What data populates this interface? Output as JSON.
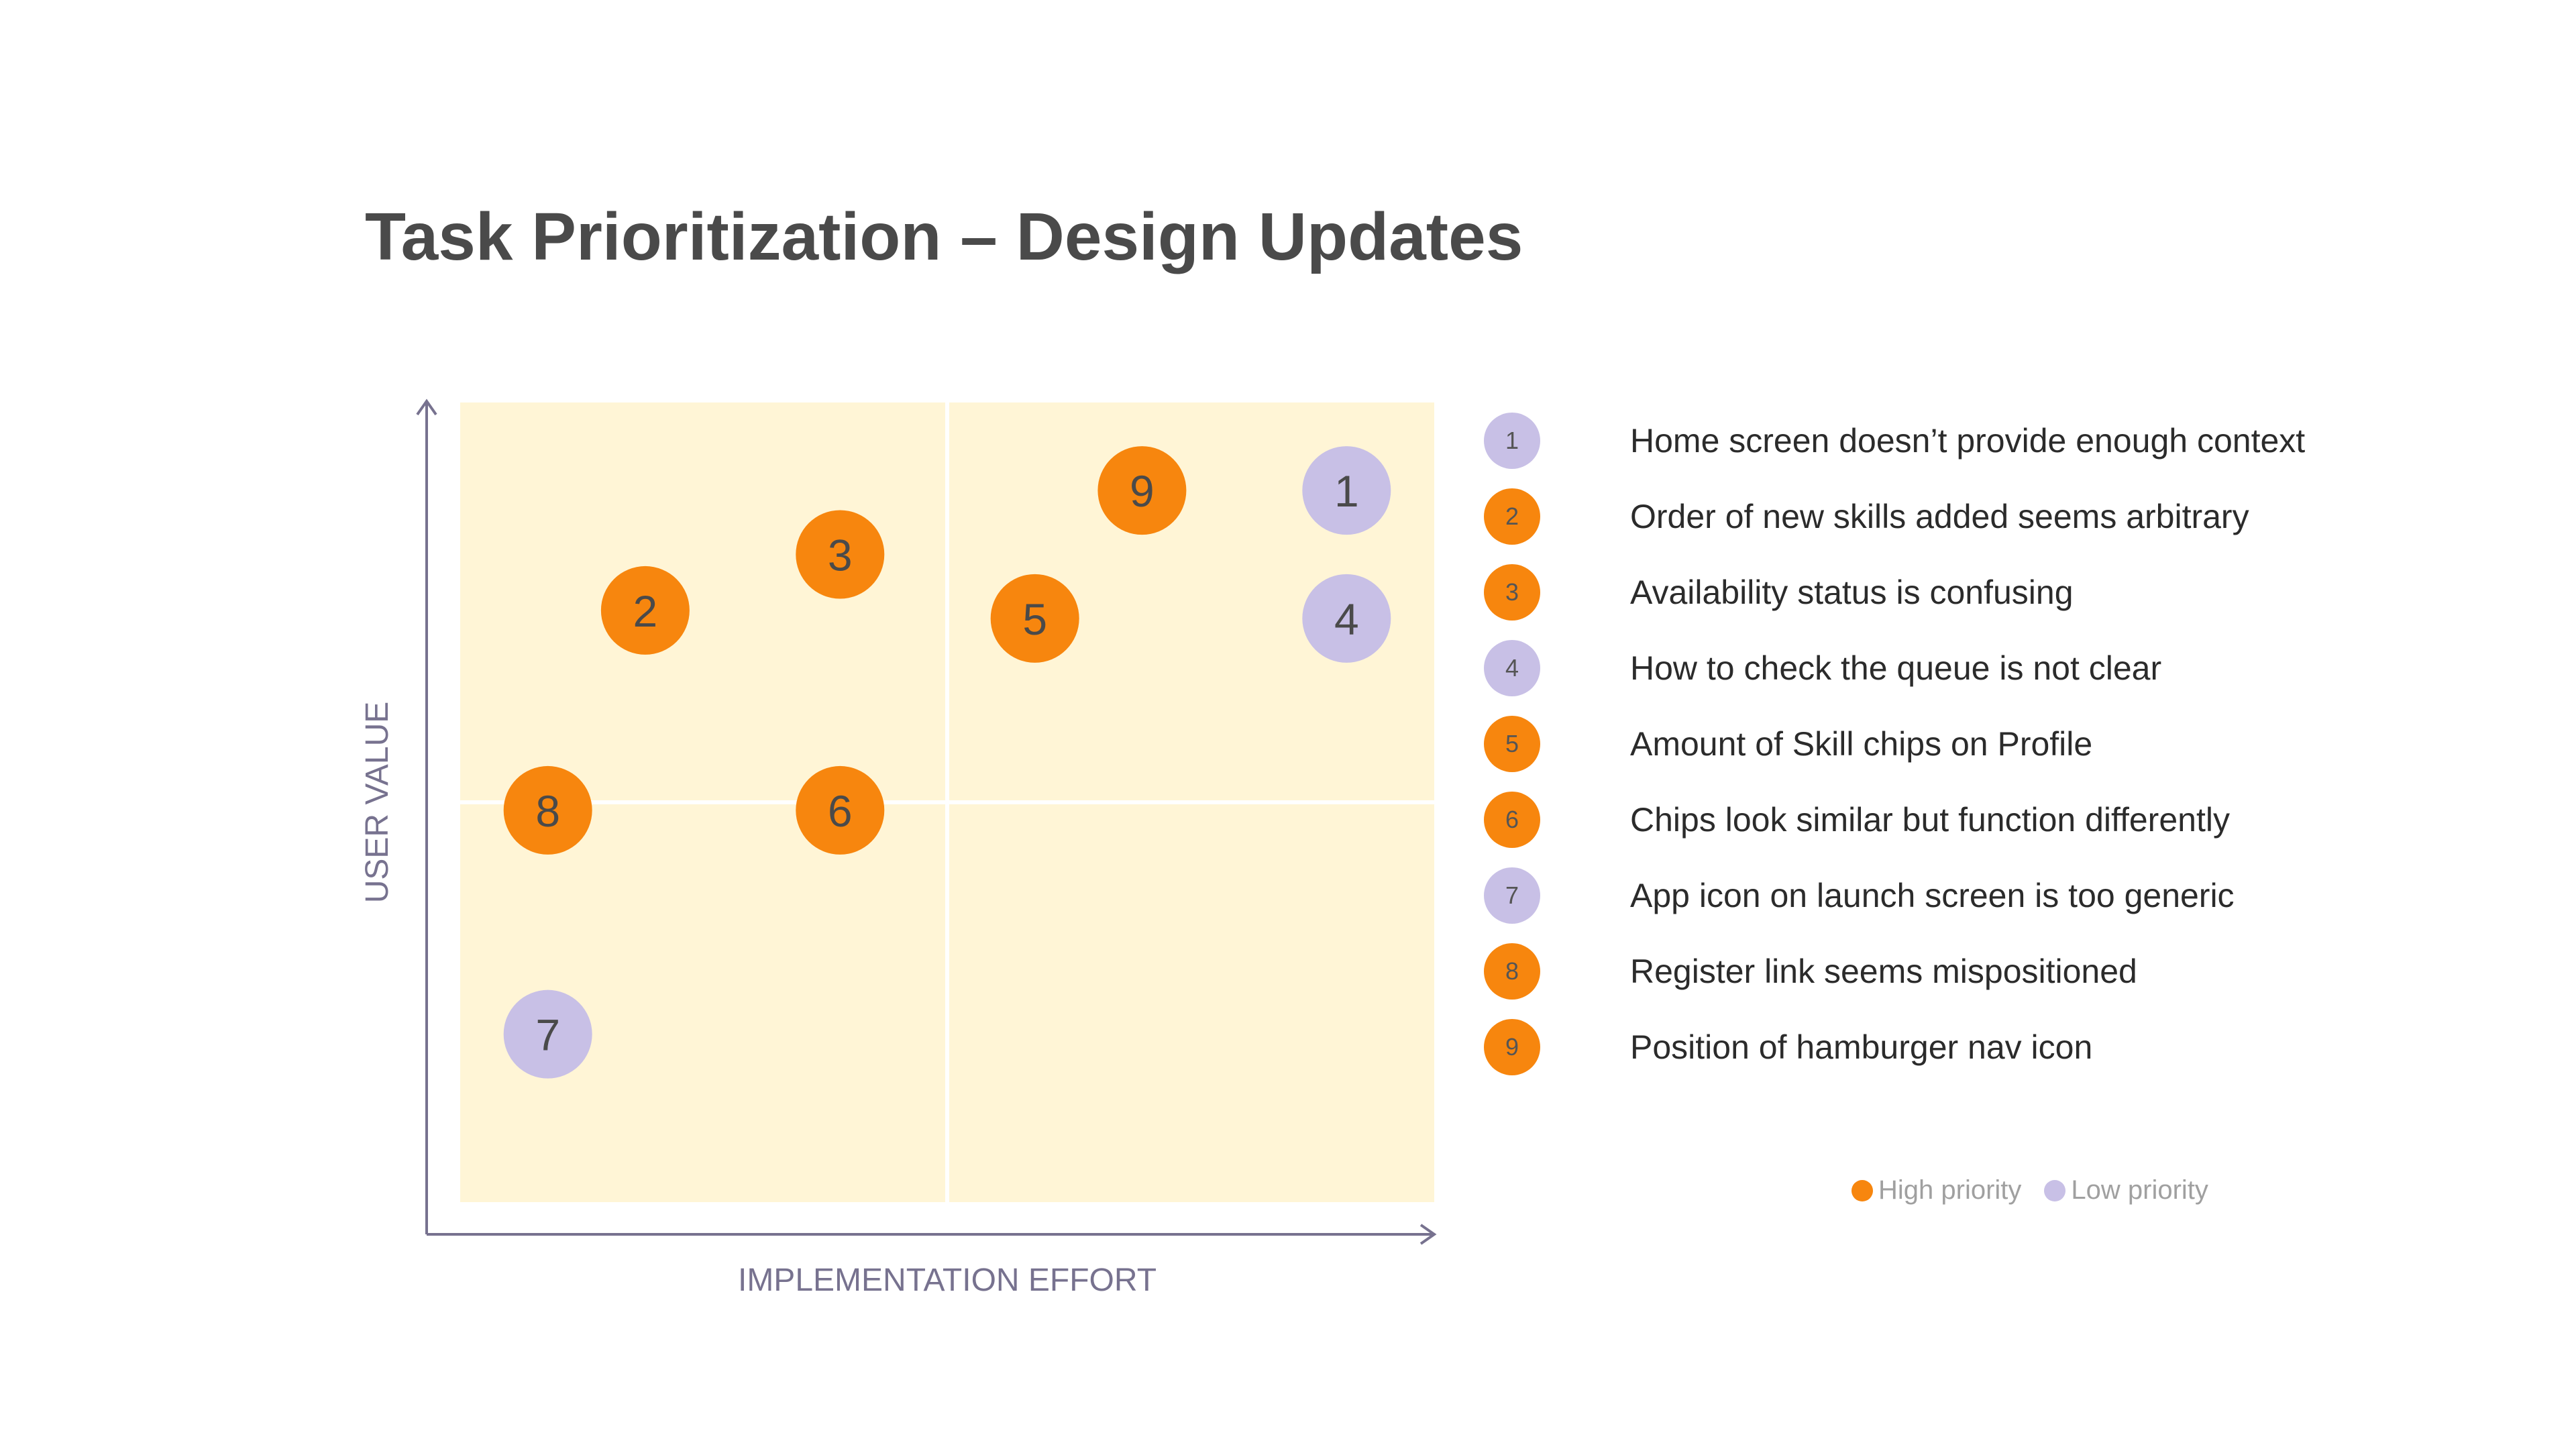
{
  "title": "Task Prioritization – Design Updates",
  "colors": {
    "high": "#f7860e",
    "low": "#c8c0e6",
    "quadrant_bg": "#fff5d6",
    "axis": "#77728f",
    "axis_label": "#77728f"
  },
  "chart_data": {
    "type": "scatter",
    "xlabel": "IMPLEMENTATION EFFORT",
    "ylabel": "USER VALUE",
    "xlim": [
      0,
      10
    ],
    "ylim": [
      0,
      10
    ],
    "grid": "quadrants",
    "points": [
      {
        "id": "1",
        "x": 9.1,
        "y": 8.9,
        "priority": "low"
      },
      {
        "id": "2",
        "x": 1.9,
        "y": 7.4,
        "priority": "high"
      },
      {
        "id": "3",
        "x": 3.9,
        "y": 8.1,
        "priority": "high"
      },
      {
        "id": "4",
        "x": 9.1,
        "y": 7.3,
        "priority": "low"
      },
      {
        "id": "5",
        "x": 5.9,
        "y": 7.3,
        "priority": "high"
      },
      {
        "id": "6",
        "x": 3.9,
        "y": 4.9,
        "priority": "high"
      },
      {
        "id": "7",
        "x": 0.9,
        "y": 2.1,
        "priority": "low"
      },
      {
        "id": "8",
        "x": 0.9,
        "y": 4.9,
        "priority": "high"
      },
      {
        "id": "9",
        "x": 7.0,
        "y": 8.9,
        "priority": "high"
      }
    ]
  },
  "legend": {
    "items": [
      {
        "id": "1",
        "label": "Home screen doesn’t provide enough context",
        "priority": "low"
      },
      {
        "id": "2",
        "label": "Order of new skills added seems arbitrary",
        "priority": "high"
      },
      {
        "id": "3",
        "label": "Availability status is confusing",
        "priority": "high"
      },
      {
        "id": "4",
        "label": "How to check the queue is not clear",
        "priority": "low"
      },
      {
        "id": "5",
        "label": "Amount of Skill chips on Profile",
        "priority": "high"
      },
      {
        "id": "6",
        "label": "Chips look similar but function differently",
        "priority": "high"
      },
      {
        "id": "7",
        "label": "App icon on launch screen is too generic",
        "priority": "low"
      },
      {
        "id": "8",
        "label": "Register link seems mispositioned",
        "priority": "high"
      },
      {
        "id": "9",
        "label": "Position of hamburger nav icon",
        "priority": "high"
      }
    ]
  },
  "priority_key": {
    "high_label": "High priority",
    "low_label": "Low priority"
  }
}
